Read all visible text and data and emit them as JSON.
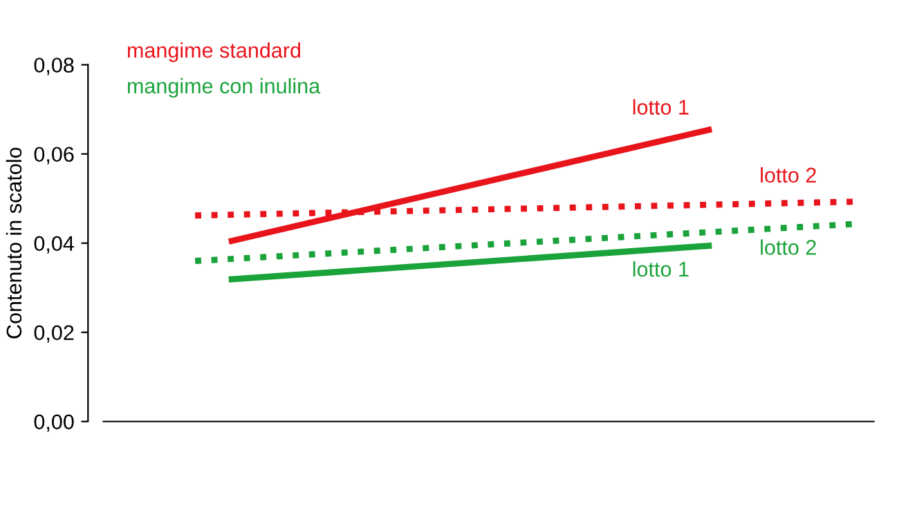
{
  "chart_data": {
    "type": "line",
    "ylabel": "Contenuto in scatolo",
    "categories": [
      null,
      null,
      null,
      null,
      null,
      null,
      null,
      null,
      null,
      null,
      null,
      null,
      null,
      null,
      null,
      null,
      null,
      null,
      null,
      null,
      null
    ],
    "ylim": [
      0,
      0.08
    ],
    "yticks": [
      {
        "value": 0,
        "label": "0,00"
      },
      {
        "value": 0.02,
        "label": "0,02"
      },
      {
        "value": 0.04,
        "label": "0,04"
      },
      {
        "value": 0.06,
        "label": "0,06"
      },
      {
        "value": 0.08,
        "label": "0,08"
      }
    ],
    "tick_labels": "y",
    "grid": false,
    "annotations": [
      "mangime standard",
      "mangime con inulina"
    ],
    "series": [
      {
        "name": "lotto 1",
        "color": "#e8141b",
        "line_style": "solid",
        "values": [
          null,
          null,
          null,
          0.0405,
          null,
          null,
          null,
          null,
          null,
          null,
          null,
          null,
          null,
          null,
          null,
          null,
          0.0654,
          null,
          null,
          null,
          null
        ]
      },
      {
        "name": "lotto 2",
        "color": "#e8141b",
        "line_style": "dotted",
        "values": [
          null,
          null,
          0.0462,
          null,
          null,
          null,
          null,
          null,
          null,
          null,
          null,
          null,
          null,
          null,
          null,
          null,
          null,
          null,
          null,
          null,
          0.0493
        ]
      },
      {
        "name": "lotto 1",
        "color": "#1aa33a",
        "line_style": "solid",
        "values": [
          null,
          null,
          null,
          0.0319,
          null,
          null,
          null,
          null,
          null,
          null,
          null,
          null,
          null,
          null,
          null,
          null,
          0.0394,
          null,
          null,
          null,
          null
        ]
      },
      {
        "name": "lotto 2",
        "color": "#1aa33a",
        "line_style": "dotted",
        "values": [
          null,
          null,
          0.036,
          null,
          null,
          null,
          null,
          null,
          null,
          null,
          null,
          null,
          null,
          null,
          null,
          null,
          null,
          null,
          null,
          null,
          0.0443
        ]
      }
    ]
  }
}
